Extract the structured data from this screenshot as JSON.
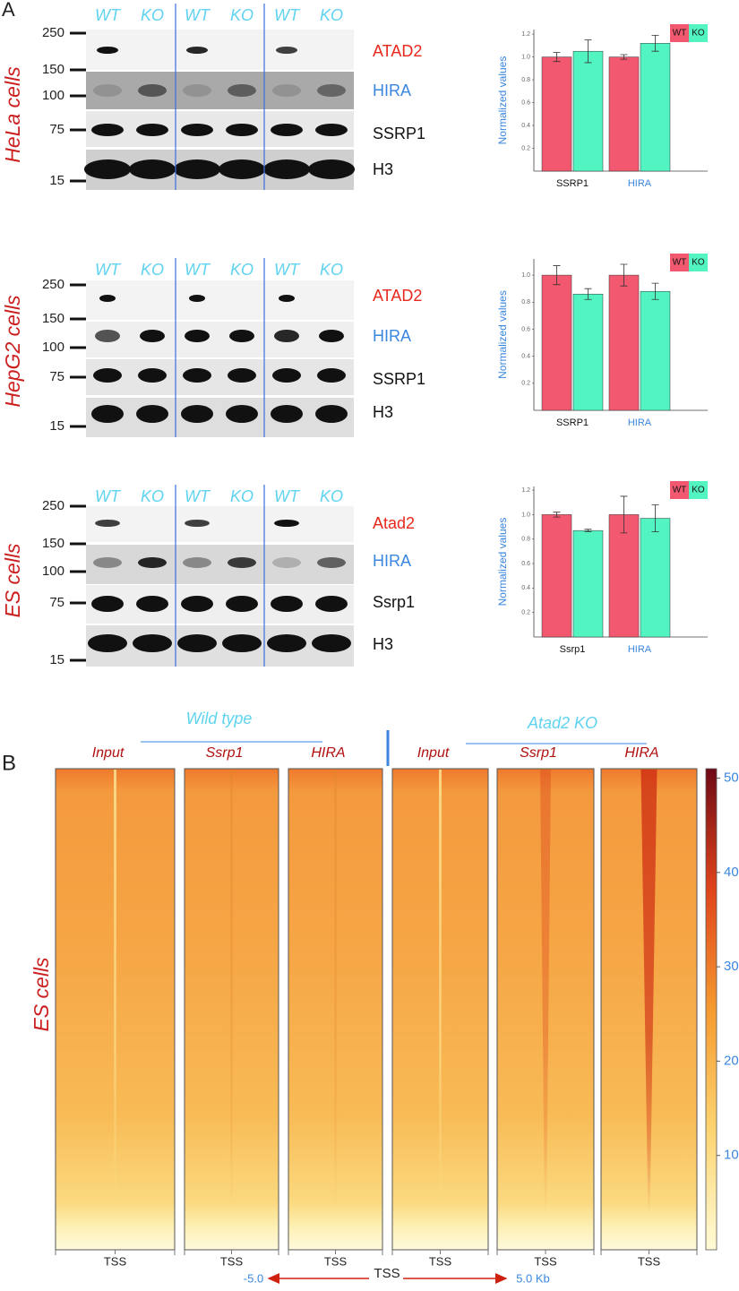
{
  "panel_a": {
    "label": "A",
    "blots": [
      {
        "cell_line": "HeLa cells",
        "lanes": [
          "WT",
          "KO",
          "WT",
          "KO",
          "WT",
          "KO"
        ],
        "markers": [
          250,
          150,
          100,
          75,
          15
        ],
        "proteins": [
          "ATAD2",
          "HIRA",
          "SSRP1",
          "H3"
        ]
      },
      {
        "cell_line": "HepG2 cells",
        "lanes": [
          "WT",
          "KO",
          "WT",
          "KO",
          "WT",
          "KO"
        ],
        "markers": [
          250,
          150,
          100,
          75,
          15
        ],
        "proteins": [
          "ATAD2",
          "HIRA",
          "SSRP1",
          "H3"
        ]
      },
      {
        "cell_line": "ES cells",
        "lanes": [
          "WT",
          "KO",
          "WT",
          "KO",
          "WT",
          "KO"
        ],
        "markers": [
          250,
          150,
          100,
          75,
          15
        ],
        "proteins": [
          "Atad2",
          "HIRA",
          "Ssrp1",
          "H3"
        ]
      }
    ]
  },
  "chart_data": [
    {
      "type": "bar",
      "ylabel": "Normalized values",
      "categories": [
        "SSRP1",
        "HIRA"
      ],
      "category_colors": [
        "#111111",
        "#3a86e0"
      ],
      "series": [
        {
          "name": "WT",
          "color": "#f2586f",
          "values": [
            1.0,
            1.0
          ],
          "errors": [
            0.04,
            0.02
          ]
        },
        {
          "name": "KO",
          "color": "#52f5c2",
          "values": [
            1.05,
            1.12
          ],
          "errors": [
            0.1,
            0.07
          ]
        }
      ],
      "ylim": [
        0,
        1.24
      ],
      "yticks": [
        0.2,
        0.4,
        0.6,
        0.8,
        {
          "value": 1,
          "label": "1.0"
        },
        1.2
      ],
      "legend": "top-right"
    },
    {
      "type": "bar",
      "ylabel": "Normalized values",
      "categories": [
        "SSRP1",
        "HIRA"
      ],
      "category_colors": [
        "#111111",
        "#3a86e0"
      ],
      "series": [
        {
          "name": "WT",
          "color": "#f2586f",
          "values": [
            1.0,
            1.0
          ],
          "errors": [
            0.07,
            0.08
          ]
        },
        {
          "name": "KO",
          "color": "#52f5c2",
          "values": [
            0.86,
            0.88
          ],
          "errors": [
            0.04,
            0.06
          ]
        }
      ],
      "ylim": [
        0,
        1.12
      ],
      "yticks": [
        0.2,
        0.4,
        0.6,
        0.8,
        {
          "value": 1,
          "label": "1.0"
        }
      ],
      "legend": "top-right"
    },
    {
      "type": "bar",
      "ylabel": "Normalized values",
      "categories": [
        "Ssrp1",
        "HIRA"
      ],
      "category_colors": [
        "#111111",
        "#3a86e0"
      ],
      "series": [
        {
          "name": "WT",
          "color": "#f2586f",
          "values": [
            1.0,
            1.0
          ],
          "errors": [
            0.02,
            0.15
          ]
        },
        {
          "name": "KO",
          "color": "#52f5c2",
          "values": [
            0.87,
            0.97
          ],
          "errors": [
            0.01,
            0.11
          ]
        }
      ],
      "ylim": [
        0,
        1.23
      ],
      "yticks": [
        0.2,
        0.4,
        0.6,
        0.8,
        {
          "value": 1,
          "label": "1.0"
        },
        1.2
      ],
      "legend": "top-right"
    }
  ],
  "panel_b": {
    "label": "B",
    "cell_line": "ES cells",
    "groups": [
      {
        "name": "Wild type",
        "columns": [
          "Input",
          "Ssrp1",
          "HIRA"
        ]
      },
      {
        "name": "Atad2 KO",
        "columns": [
          "Input",
          "Ssrp1",
          "HIRA"
        ]
      }
    ],
    "column_axis_label": "TSS",
    "axis": {
      "left": "-5.0",
      "center": "TSS",
      "right": "5.0 Kb"
    },
    "colorbar": {
      "lim": [
        0,
        51
      ],
      "ticks": [
        10,
        20,
        30,
        40,
        50
      ]
    }
  }
}
